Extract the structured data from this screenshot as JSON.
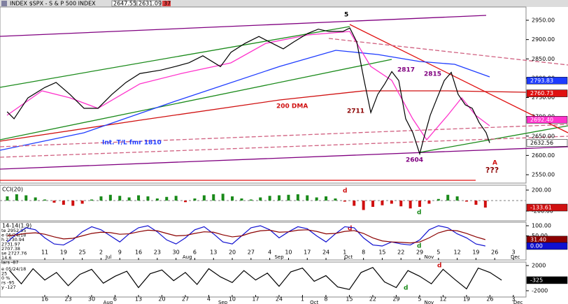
{
  "chart_data": [
    {
      "type": "line",
      "title": "INDEX $SPX - S & P 500 INDEX",
      "quote": [
        2647.55,
        2631.09
      ],
      "change": "37",
      "color": "#000000",
      "x": [
        -2.01,
        -1.64,
        -0.9,
        0,
        0.6,
        1.34,
        2.09,
        2.84,
        3.58,
        4.33,
        5.07,
        6.19,
        6.94,
        7.69,
        8.43,
        9.37,
        9.93,
        10.67,
        11.42,
        11.98,
        12.72,
        13.28,
        14.03,
        14.59,
        15.15,
        15.9,
        16.27,
        16.64,
        17.01,
        17.39,
        17.76,
        18.13,
        18.51,
        18.88,
        19.25,
        19.63,
        20,
        20.19,
        20.56,
        20.93,
        21.31,
        21.68,
        22.05,
        22.43,
        22.8,
        23.17,
        23.54,
        23.73
      ],
      "values": [
        2713,
        2695,
        2749,
        2776,
        2789,
        2758,
        2722,
        2722,
        2758,
        2789,
        2812,
        2821,
        2830,
        2840,
        2858,
        2830,
        2867,
        2890,
        2908,
        2894,
        2876,
        2894,
        2916,
        2927,
        2921,
        2921,
        2930,
        2894,
        2800,
        2711,
        2758,
        2785,
        2817,
        2794,
        2695,
        2659,
        2604,
        2640,
        2704,
        2749,
        2794,
        2815,
        2758,
        2731,
        2722,
        2685,
        2659,
        2632.56
      ],
      "xlim": [
        -2.39,
        25.67
      ],
      "ylim": [
        2528.3,
        2984.4
      ],
      "yticks": [
        {
          "value": 2550,
          "label": "2550.00"
        },
        {
          "value": 2600,
          "label": "2600.00"
        },
        {
          "value": 2650,
          "label": "2650.00"
        },
        {
          "value": 2700,
          "label": "2700.00"
        },
        {
          "value": 2750,
          "label": "2750.00"
        },
        {
          "value": 2800,
          "label": "2800.00"
        },
        {
          "value": 2850,
          "label": "2850.00"
        },
        {
          "value": 2900,
          "label": "2900.00"
        },
        {
          "value": 2950,
          "label": "2950.00"
        }
      ],
      "markers": [
        {
          "value": 2793.83,
          "label": "2793.83",
          "color": "#1e3cff",
          "text_color": "#ffffff"
        },
        {
          "value": 2760.73,
          "label": "2760.73",
          "color": "#e01010",
          "text_color": "#ffffff"
        },
        {
          "value": 2692.4,
          "label": "2692.40",
          "color": "#ff33cc",
          "text_color": "#ffffff"
        },
        {
          "value": 2632.56,
          "label": "2632.56",
          "color": "#ffffff",
          "text_color": "#000000"
        }
      ],
      "annotations": [
        "5",
        "2817",
        "2815",
        "2711",
        "2604",
        "200 DMA",
        "Int. T/L fmr 1810",
        "A",
        "???"
      ]
    },
    {
      "type": "bar",
      "label": "CCI(20)",
      "colors": [
        "#1a8a1a",
        "#d01010"
      ],
      "x": [
        -2,
        -1.5,
        -1,
        -0.5,
        0,
        0.5,
        1,
        1.5,
        2,
        2.5,
        3,
        3.5,
        4,
        4.5,
        5,
        5.5,
        6,
        6.5,
        7,
        7.5,
        8,
        8.5,
        9,
        9.5,
        10,
        10.5,
        11,
        11.5,
        12,
        12.5,
        13,
        13.5,
        14,
        14.5,
        15,
        15.5,
        16,
        16.5,
        17,
        17.5,
        18,
        18.5,
        19,
        19.5,
        20,
        20.5,
        21,
        21.5,
        22,
        22.5,
        23,
        23.5
      ],
      "values": [
        80,
        120,
        100,
        60,
        20,
        -40,
        -80,
        -100,
        -60,
        20,
        80,
        110,
        90,
        60,
        100,
        80,
        40,
        70,
        90,
        -30,
        40,
        100,
        120,
        130,
        80,
        40,
        20,
        60,
        90,
        100,
        110,
        120,
        100,
        60,
        80,
        40,
        -20,
        -100,
        -180,
        -120,
        -90,
        -60,
        -110,
        -150,
        -120,
        -60,
        30,
        110,
        80,
        -20,
        -80,
        -133.61
      ],
      "xlim": [
        -2.39,
        25.67
      ],
      "ylim": [
        -386.7,
        293.3
      ],
      "yticks": [
        {
          "value": 200,
          "label": "200.00"
        },
        {
          "value": -200,
          "label": "-200.00"
        }
      ],
      "markers": [
        {
          "value": -133.61,
          "label": "-133.61",
          "color": "#d01010",
          "text_color": "#ffffff"
        }
      ],
      "annotations": [
        "d",
        "d"
      ]
    },
    {
      "type": "line",
      "label": "14-14(1.9)",
      "info": [
        "te 2952.95",
        "e 05/24/18",
        "h 2730.94",
        "2731.97",
        "2707.38",
        "se 2727.76",
        "14.6",
        "lars -87"
      ],
      "x": [
        -2,
        -1.5,
        -1,
        -0.5,
        0,
        0.5,
        1,
        1.5,
        2,
        2.5,
        3,
        3.5,
        4,
        4.5,
        5,
        5.5,
        6,
        6.5,
        7,
        7.5,
        8,
        8.5,
        9,
        9.5,
        10,
        10.5,
        11,
        11.5,
        12,
        12.5,
        13,
        13.5,
        14,
        14.5,
        15,
        15.5,
        16,
        16.5,
        17,
        17.5,
        18,
        18.5,
        19,
        19.5,
        20,
        20.5,
        21,
        21.5,
        22,
        22.5,
        23,
        23.5
      ],
      "series": [
        {
          "color": "#1010d0",
          "values": [
            20,
            60,
            90,
            80,
            40,
            10,
            5,
            30,
            70,
            95,
            80,
            50,
            20,
            60,
            90,
            100,
            70,
            30,
            10,
            40,
            80,
            95,
            60,
            20,
            10,
            50,
            90,
            100,
            80,
            40,
            70,
            95,
            85,
            50,
            20,
            60,
            95,
            90,
            40,
            5,
            0,
            20,
            10,
            5,
            30,
            80,
            100,
            90,
            60,
            40,
            10,
            0
          ]
        },
        {
          "color": "#8b0000",
          "values": [
            50,
            55,
            62,
            65,
            58,
            45,
            35,
            38,
            50,
            62,
            68,
            66,
            58,
            60,
            70,
            78,
            75,
            62,
            50,
            52,
            62,
            70,
            68,
            55,
            45,
            50,
            65,
            75,
            78,
            68,
            70,
            78,
            80,
            72,
            60,
            62,
            72,
            76,
            62,
            40,
            25,
            20,
            18,
            15,
            20,
            40,
            65,
            78,
            75,
            62,
            45,
            31.4
          ]
        }
      ],
      "xlim": [
        -2.39,
        25.67
      ],
      "ylim": [
        -69,
        117.2
      ],
      "yticks": [
        {
          "value": 100,
          "label": "100.00"
        },
        {
          "value": 50,
          "label": "50.00"
        }
      ],
      "markers": [
        {
          "value": 31.4,
          "label": "31.40",
          "color": "#8b0000",
          "text_color": "#ffffff"
        },
        {
          "value": 0,
          "label": "0.00",
          "color": "#1010d0",
          "text_color": "#ffffff"
        }
      ],
      "xticks": [
        {
          "value": 0,
          "label": "11"
        },
        {
          "value": 1,
          "label": "19"
        },
        {
          "value": 2,
          "label": "25"
        },
        {
          "value": 3,
          "label": "2"
        },
        {
          "value": 4,
          "label": "9"
        },
        {
          "value": 5,
          "label": "16"
        },
        {
          "value": 6,
          "label": "23"
        },
        {
          "value": 7,
          "label": "30"
        },
        {
          "value": 8,
          "label": "6"
        },
        {
          "value": 9,
          "label": "13"
        },
        {
          "value": 10,
          "label": "20"
        },
        {
          "value": 11,
          "label": "27"
        },
        {
          "value": 12,
          "label": "4"
        },
        {
          "value": 13,
          "label": "10"
        },
        {
          "value": 14,
          "label": "17"
        },
        {
          "value": 15,
          "label": "24"
        },
        {
          "value": 16,
          "label": "1"
        },
        {
          "value": 17,
          "label": "8"
        },
        {
          "value": 18,
          "label": "15"
        },
        {
          "value": 19,
          "label": "22"
        },
        {
          "value": 20,
          "label": "29"
        },
        {
          "value": 21,
          "label": "5"
        },
        {
          "value": 22,
          "label": "12"
        },
        {
          "value": 23,
          "label": "19"
        },
        {
          "value": 24,
          "label": "26"
        },
        {
          "value": 25,
          "label": "3"
        }
      ],
      "months": [
        {
          "value": 3.4,
          "label": "Jul"
        },
        {
          "value": 7.6,
          "label": "Aug"
        },
        {
          "value": 12.5,
          "label": "Sep"
        },
        {
          "value": 16.2,
          "label": "Oct"
        },
        {
          "value": 20.5,
          "label": "Nov"
        },
        {
          "value": 25.1,
          "label": "Dec"
        }
      ],
      "annotations": [
        "d",
        "d"
      ]
    },
    {
      "type": "line",
      "info": [
        "e 05/24/18",
        "25",
        "0 %",
        "rs -95",
        "y -127"
      ],
      "x": [
        -1.5,
        -1,
        -0.5,
        0,
        0.5,
        1,
        1.5,
        2,
        2.5,
        3,
        3.5,
        4,
        4.5,
        5,
        5.5,
        6,
        6.5,
        7,
        7.5,
        8,
        8.5,
        9,
        9.5,
        10,
        10.5,
        11,
        11.5,
        12,
        12.5,
        13,
        13.5,
        14,
        14.5,
        15,
        15.5,
        16,
        16.5,
        17,
        17.5,
        18,
        18.5,
        19,
        19.5
      ],
      "color": "#000000",
      "values": [
        1200,
        -900,
        1500,
        -300,
        900,
        -1200,
        600,
        1400,
        -800,
        300,
        1100,
        -1500,
        700,
        1300,
        -400,
        900,
        -1000,
        1500,
        200,
        -700,
        1200,
        -300,
        800,
        -1300,
        1000,
        1600,
        -500,
        400,
        -1400,
        -1800,
        900,
        1700,
        -600,
        -1500,
        1200,
        300,
        -900,
        1400,
        -200,
        -1700,
        1600,
        900,
        -325
      ],
      "xlim": [
        -1.91,
        20.54
      ],
      "ylim": [
        -3000,
        2555.6
      ],
      "yticks": [
        2000,
        -2000
      ],
      "markers": [
        {
          "value": -325,
          "label": "-325",
          "color": "#000000",
          "text_color": "#ffffff"
        }
      ],
      "xticks": [
        {
          "value": 0,
          "label": "16"
        },
        {
          "value": 1,
          "label": "23"
        },
        {
          "value": 2,
          "label": "30"
        },
        {
          "value": 3,
          "label": "6"
        },
        {
          "value": 4,
          "label": "13"
        },
        {
          "value": 5,
          "label": "20"
        },
        {
          "value": 6,
          "label": "27"
        },
        {
          "value": 7,
          "label": "4"
        },
        {
          "value": 8,
          "label": "10"
        },
        {
          "value": 9,
          "label": "17"
        },
        {
          "value": 10,
          "label": "24"
        },
        {
          "value": 11,
          "label": "1"
        },
        {
          "value": 12,
          "label": "8"
        },
        {
          "value": 13,
          "label": "15"
        },
        {
          "value": 14,
          "label": "22"
        },
        {
          "value": 15,
          "label": "29"
        },
        {
          "value": 16,
          "label": "5"
        },
        {
          "value": 17,
          "label": "12"
        },
        {
          "value": 18,
          "label": "19"
        },
        {
          "value": 19,
          "label": "26"
        },
        {
          "value": 20,
          "label": "3"
        }
      ],
      "months": [
        {
          "value": 2.7,
          "label": "Aug"
        },
        {
          "value": 7.6,
          "label": "Sep"
        },
        {
          "value": 11.5,
          "label": "Oct"
        },
        {
          "value": 16.4,
          "label": "Nov"
        },
        {
          "value": 20.2,
          "label": "Dec"
        }
      ],
      "annotations": [
        "d",
        "d"
      ]
    }
  ]
}
